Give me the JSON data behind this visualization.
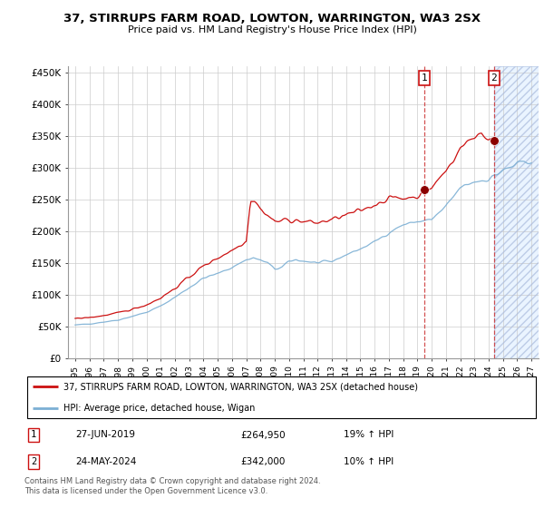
{
  "title": "37, STIRRUPS FARM ROAD, LOWTON, WARRINGTON, WA3 2SX",
  "subtitle": "Price paid vs. HM Land Registry's House Price Index (HPI)",
  "legend_line1": "37, STIRRUPS FARM ROAD, LOWTON, WARRINGTON, WA3 2SX (detached house)",
  "legend_line2": "HPI: Average price, detached house, Wigan",
  "annotation1_label": "1",
  "annotation1_date": "27-JUN-2019",
  "annotation1_price": "£264,950",
  "annotation1_hpi": "19% ↑ HPI",
  "annotation2_label": "2",
  "annotation2_date": "24-MAY-2024",
  "annotation2_price": "£342,000",
  "annotation2_hpi": "10% ↑ HPI",
  "footer": "Contains HM Land Registry data © Crown copyright and database right 2024.\nThis data is licensed under the Open Government Licence v3.0.",
  "hpi_color": "#7bafd4",
  "price_color": "#cc1111",
  "marker_color": "#8b0000",
  "shade_color": "#ddeeff",
  "hatch_color": "#aabbcc",
  "sale1_x": 2019.5,
  "sale1_y": 264950,
  "sale2_x": 2024.37,
  "sale2_y": 342000,
  "vline_x1": 2019.5,
  "vline_x2": 2024.37,
  "future_start": 2024.37,
  "ylim": [
    0,
    460000
  ],
  "xlim_min": 1994.5,
  "xlim_max": 2027.5,
  "yticks": [
    0,
    50000,
    100000,
    150000,
    200000,
    250000,
    300000,
    350000,
    400000,
    450000
  ],
  "ytick_labels": [
    "£0",
    "£50K",
    "£100K",
    "£150K",
    "£200K",
    "£250K",
    "£300K",
    "£350K",
    "£400K",
    "£450K"
  ]
}
